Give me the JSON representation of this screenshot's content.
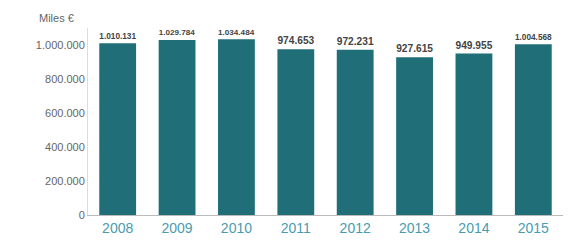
{
  "chart_data": {
    "type": "bar",
    "ylabel": "Miles €",
    "categories": [
      "2008",
      "2009",
      "2010",
      "2011",
      "2012",
      "2013",
      "2014",
      "2015"
    ],
    "values": [
      1010131,
      1029784,
      1034484,
      974653,
      972231,
      927615,
      949955,
      1004568
    ],
    "value_labels": [
      "1.010.131",
      "1.029.784",
      "1.034.484",
      "974.653",
      "972.231",
      "927.615",
      "949.955",
      "1.004.568"
    ],
    "data_labels": true,
    "color": "#1f6e78",
    "ylim": [
      0,
      1100000
    ],
    "yticks": [
      0,
      {
        "value": 200000,
        "label": "200.000"
      },
      {
        "value": 400000,
        "label": "400.000"
      },
      {
        "value": 600000,
        "label": "600.000"
      },
      {
        "value": 800000,
        "label": "800.000"
      },
      {
        "value": 1000000,
        "label": "1.000.000"
      }
    ],
    "grid": false
  }
}
